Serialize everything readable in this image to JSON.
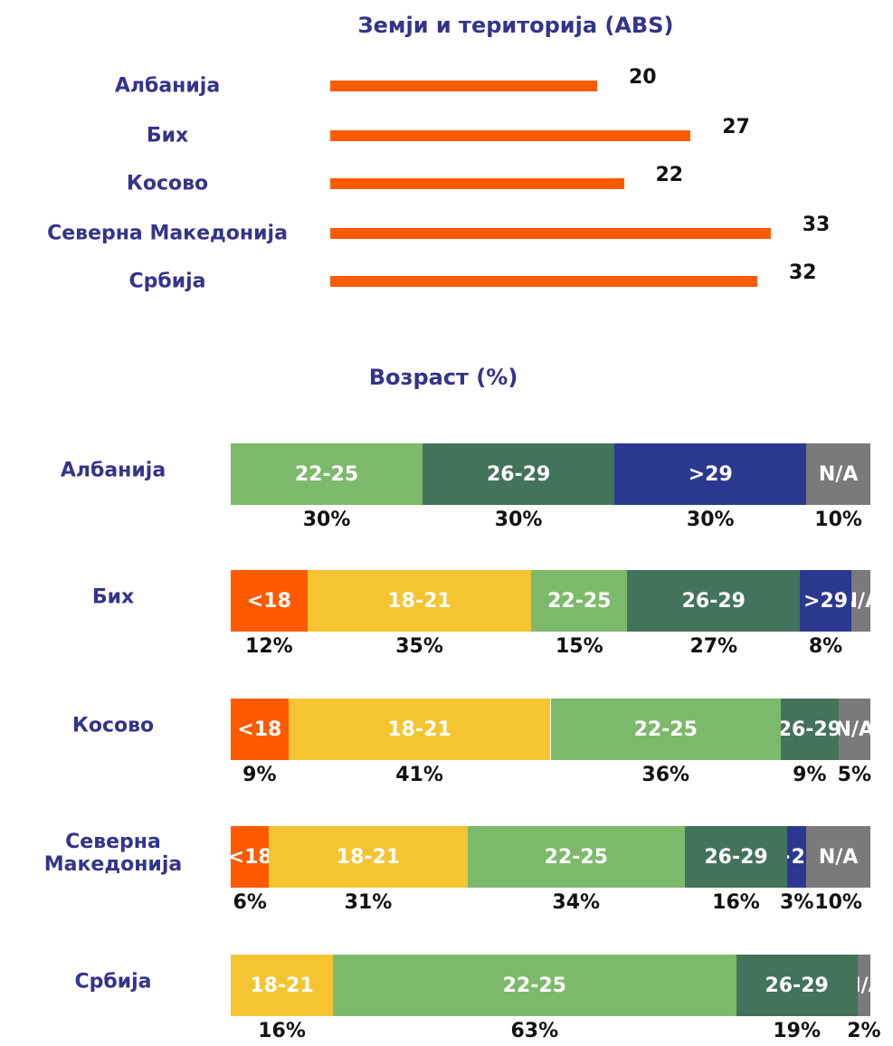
{
  "chart_data": [
    {
      "type": "hbar",
      "title": "Земји и територија (ABS)",
      "categories": [
        "Албанија",
        "Бих",
        "Косово",
        "Северна Македонија",
        "Србија"
      ],
      "values": [
        20,
        27,
        22,
        33,
        32
      ],
      "color": "#ff5a00",
      "xlim": [
        0,
        40
      ]
    },
    {
      "type": "stacked_hbar",
      "title": "Возраст (%)",
      "categories": [
        "Албанија",
        "Бих",
        "Косово",
        "Северна Македонија",
        "Србија"
      ],
      "xlim": [
        0,
        100
      ],
      "series": [
        {
          "name": "<18",
          "color": "#ff5a00",
          "values": [
            0,
            12,
            9,
            6,
            0
          ],
          "value_labels": [
            null,
            "12%",
            "9%",
            "6%",
            null
          ]
        },
        {
          "name": "18-21",
          "color": "#f5c431",
          "values": [
            0,
            35,
            41,
            31,
            16
          ],
          "value_labels": [
            null,
            "35%",
            "41%",
            "31%",
            "16%"
          ]
        },
        {
          "name": "22-25",
          "color": "#7db96a",
          "values": [
            30,
            15,
            36,
            34,
            63
          ],
          "value_labels": [
            "30%",
            "15%",
            "36%",
            "34%",
            "63%"
          ]
        },
        {
          "name": "26-29",
          "color": "#43735a",
          "values": [
            30,
            27,
            9,
            16,
            19
          ],
          "value_labels": [
            "30%",
            "27%",
            "9%",
            "16%",
            "19%"
          ]
        },
        {
          "name": ">29",
          "color": "#2b388f",
          "values": [
            30,
            8,
            0,
            3,
            0
          ],
          "value_labels": [
            "30%",
            "8%",
            null,
            "3%",
            null
          ]
        },
        {
          "name": "N/A",
          "color": "#7a7a7a",
          "values": [
            10,
            3,
            5,
            10,
            2
          ],
          "value_labels": [
            "10%",
            null,
            "5%",
            "10%",
            "2%"
          ]
        }
      ]
    }
  ]
}
